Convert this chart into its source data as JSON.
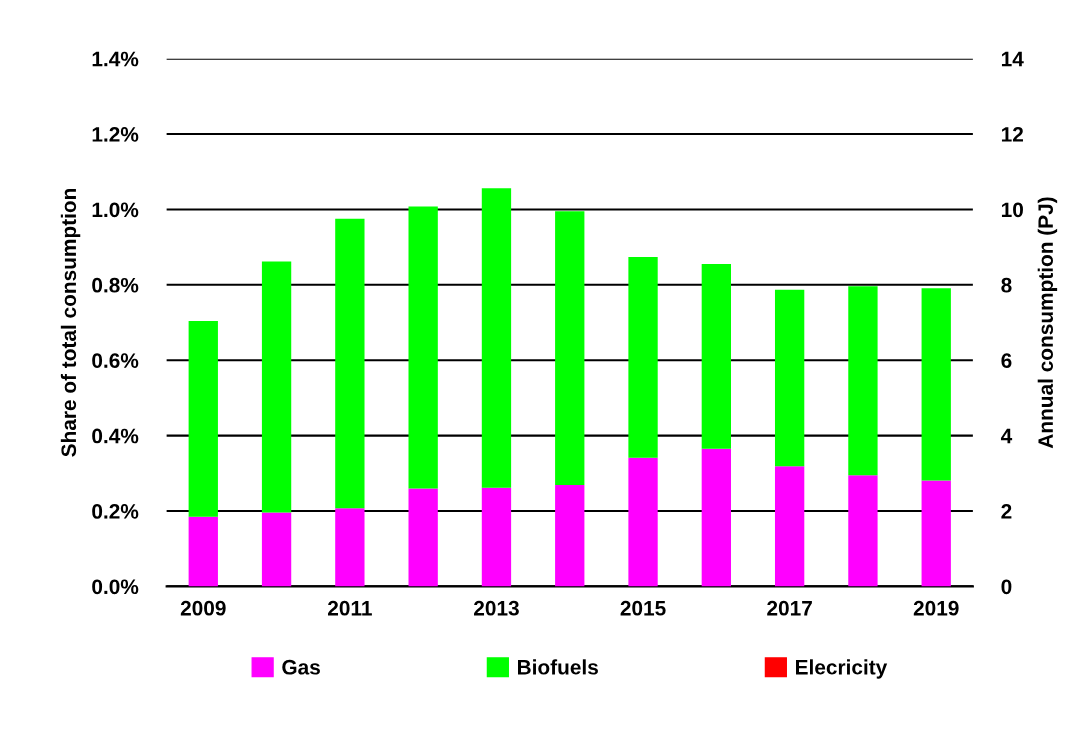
{
  "chart_data": {
    "type": "bar",
    "stacked": true,
    "categories": [
      "2009",
      null,
      "2011",
      null,
      "2013",
      null,
      "2015",
      null,
      "2017",
      null,
      "2019"
    ],
    "series": [
      {
        "name": "Gas",
        "color": "#ff00ff",
        "values": [
          0.185,
          0.196,
          0.207,
          0.26,
          0.262,
          0.269,
          0.341,
          0.365,
          0.319,
          0.295,
          0.281
        ]
      },
      {
        "name": "Biofuels",
        "color": "#00ff00",
        "values": [
          0.519,
          0.666,
          0.768,
          0.748,
          0.794,
          0.726,
          0.533,
          0.49,
          0.468,
          0.501,
          0.51
        ]
      },
      {
        "name": "Elecricity",
        "color": "#ff0000",
        "values": [
          0,
          0,
          0,
          0,
          0,
          0,
          0,
          0,
          0,
          0,
          0
        ]
      }
    ],
    "ylabel": "Share of total consumption",
    "y2label": "Annual consumption (PJ)",
    "ylim": [
      0,
      1.4
    ],
    "yticks": [
      {
        "value": 0,
        "label": "0.0%"
      },
      {
        "value": 0.2,
        "label": "0.2%"
      },
      {
        "value": 0.4,
        "label": "0.4%"
      },
      {
        "value": 0.6,
        "label": "0.6%"
      },
      {
        "value": 0.8,
        "label": "0.8%"
      },
      {
        "value": 1.0,
        "label": "1.0%"
      },
      {
        "value": 1.2,
        "label": "1.2%"
      },
      {
        "value": 1.4,
        "label": "1.4%"
      }
    ],
    "y2lim": [
      0,
      14
    ],
    "y2ticks": [
      0,
      2,
      4,
      6,
      8,
      10,
      12,
      14
    ],
    "grid": "y",
    "legend": "bottom"
  }
}
